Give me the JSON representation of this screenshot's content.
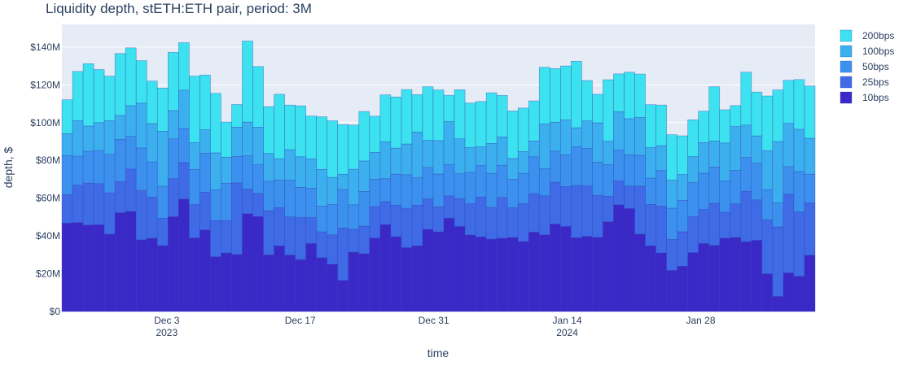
{
  "chart_data": {
    "type": "bar",
    "stacked": true,
    "title": "Liquidity depth, stETH:ETH pair, period: 3M",
    "xlabel": "time",
    "ylabel": "depth, $",
    "ylim": [
      0,
      152
    ],
    "y_unit": "million $",
    "y_ticks": [
      {
        "value": 0,
        "label": "$0"
      },
      {
        "value": 20,
        "label": "$20M"
      },
      {
        "value": 40,
        "label": "$40M"
      },
      {
        "value": 60,
        "label": "$60M"
      },
      {
        "value": 80,
        "label": "$80M"
      },
      {
        "value": 100,
        "label": "$100M"
      },
      {
        "value": 120,
        "label": "$120M"
      },
      {
        "value": 140,
        "label": "$140M"
      }
    ],
    "x_start": "2023-11-22",
    "x_end": "2024-02-09",
    "x_ticks": [
      {
        "date": "2023-12-03",
        "label": "Dec 3",
        "sublabel": "2023"
      },
      {
        "date": "2023-12-17",
        "label": "Dec 17",
        "sublabel": ""
      },
      {
        "date": "2023-12-31",
        "label": "Dec 31",
        "sublabel": ""
      },
      {
        "date": "2024-01-14",
        "label": "Jan 14",
        "sublabel": "2024"
      },
      {
        "date": "2024-01-28",
        "label": "Jan 28",
        "sublabel": ""
      }
    ],
    "grid": true,
    "legend_position": "right",
    "series": [
      {
        "name": "10bps",
        "color": "#3a29c7",
        "values": [
          46.8,
          47.1,
          45.8,
          46.0,
          41.0,
          52.3,
          53.0,
          38.0,
          38.8,
          34.9,
          50.2,
          59.5,
          39.0,
          43.2,
          29.0,
          31.0,
          30.2,
          51.8,
          50.3,
          30.0,
          34.8,
          29.9,
          27.5,
          36.0,
          28.5,
          25.0,
          16.5,
          31.4,
          30.6,
          38.9,
          46.0,
          39.6,
          33.8,
          34.8,
          43.5,
          42.2,
          49.4,
          45.0,
          40.5,
          39.5,
          38.3,
          38.8,
          39.2,
          37.1,
          42.0,
          40.6,
          46.3,
          45.0,
          39.1,
          39.8,
          39.3,
          47.5,
          56.5,
          54.5,
          41.0,
          34.8,
          31.0,
          21.8,
          24.0,
          31.2,
          36.0,
          35.0,
          38.8,
          39.2,
          37.0,
          37.7,
          20.0,
          8.0,
          20.5,
          18.7,
          29.8
        ]
      },
      {
        "name": "25bps",
        "color": "#3f6be6",
        "values": [
          15.1,
          19.8,
          22.2,
          21.7,
          21.8,
          16.5,
          22.4,
          26.1,
          21.7,
          14.4,
          20.1,
          19.3,
          17.6,
          19.9,
          19.2,
          17.1,
          37.9,
          13.0,
          12.2,
          23.4,
          20.2,
          20.2,
          22.2,
          13.7,
          13.7,
          15.6,
          27.7,
          12.1,
          14.6,
          16.7,
          12.2,
          16.6,
          20.8,
          21.4,
          16.1,
          13.2,
          11.8,
          14.8,
          16.6,
          21.0,
          16.9,
          21.6,
          15.7,
          20.0,
          20.4,
          20.7,
          22.2,
          21.1,
          27.7,
          26.7,
          22.2,
          13.5,
          12.6,
          11.9,
          25.3,
          21.9,
          24.8,
          16.3,
          18.2,
          19.1,
          18.0,
          22.3,
          13.8,
          17.8,
          26.7,
          21.4,
          28.6,
          36.8,
          41.6,
          34.1,
          27.7
        ]
      },
      {
        "name": "50bps",
        "color": "#3c91ef",
        "values": [
          20.6,
          15.3,
          16.8,
          17.5,
          20.4,
          22.3,
          17.3,
          22.5,
          18.7,
          17.1,
          21.1,
          18.1,
          18.6,
          20.6,
          16.2,
          19.8,
          14.0,
          17.6,
          15.2,
          15.6,
          14.6,
          19.5,
          16.0,
          15.6,
          13.6,
          16.0,
          20.4,
          13.0,
          18.4,
          14.4,
          12.1,
          16.5,
          17.8,
          14.6,
          16.7,
          17.4,
          16.5,
          13.1,
          16.6,
          16.7,
          18.0,
          17.0,
          15.1,
          16.1,
          19.5,
          14.4,
          16.4,
          16.8,
          20.4,
          19.8,
          17.6,
          16.7,
          16.4,
          16.5,
          16.4,
          13.9,
          18.8,
          16.6,
          16.7,
          17.9,
          19.2,
          19.2,
          16.6,
          17.7,
          17.8,
          19.4,
          15.9,
          12.7,
          14.6,
          21.3,
          15.2
        ]
      },
      {
        "name": "100bps",
        "color": "#3cb0ef",
        "values": [
          11.6,
          18.8,
          13.4,
          14.8,
          17.8,
          12.7,
          16.3,
          23.7,
          20.3,
          29.0,
          15.0,
          20.3,
          14.2,
          12.5,
          19.6,
          13.8,
          15.5,
          17.9,
          19.9,
          14.7,
          11.3,
          16.1,
          16.2,
          15.5,
          19.4,
          14.4,
          8.0,
          18.8,
          16.1,
          14.2,
          19.6,
          13.8,
          16.3,
          24.2,
          14.3,
          17.7,
          22.8,
          18.5,
          13.2,
          10.0,
          15.8,
          15.0,
          11.0,
          11.5,
          8.4,
          23.6,
          15.3,
          18.5,
          10.1,
          14.6,
          20.8,
          12.5,
          20.3,
          19.2,
          20.0,
          16.3,
          13.2,
          14.9,
          13.6,
          13.8,
          16.2,
          13.8,
          20.0,
          23.2,
          17.2,
          14.5,
          20.6,
          32.5,
          22.9,
          22.4,
          19.0
        ]
      },
      {
        "name": "200bps",
        "color": "#3ce2ef",
        "values": [
          18.0,
          26.1,
          33.0,
          28.1,
          23.6,
          32.8,
          30.6,
          22.5,
          22.5,
          22.9,
          30.8,
          25.1,
          35.2,
          29.0,
          31.5,
          18.6,
          12.0,
          42.9,
          32.1,
          24.8,
          34.1,
          23.6,
          27.0,
          22.7,
          27.9,
          30.0,
          26.4,
          23.4,
          26.2,
          19.2,
          24.8,
          27.1,
          28.8,
          19.8,
          28.4,
          26.8,
          14.0,
          26.0,
          23.5,
          24.0,
          26.8,
          22.0,
          25.2,
          23.0,
          21.2,
          30.0,
          28.4,
          28.6,
          35.2,
          21.4,
          15.1,
          32.5,
          20.0,
          24.6,
          23.0,
          22.6,
          21.5,
          24.0,
          20.5,
          19.5,
          16.7,
          28.7,
          17.6,
          11.1,
          28.0,
          23.2,
          29.0,
          27.3,
          22.8,
          26.3,
          27.7
        ]
      }
    ]
  }
}
